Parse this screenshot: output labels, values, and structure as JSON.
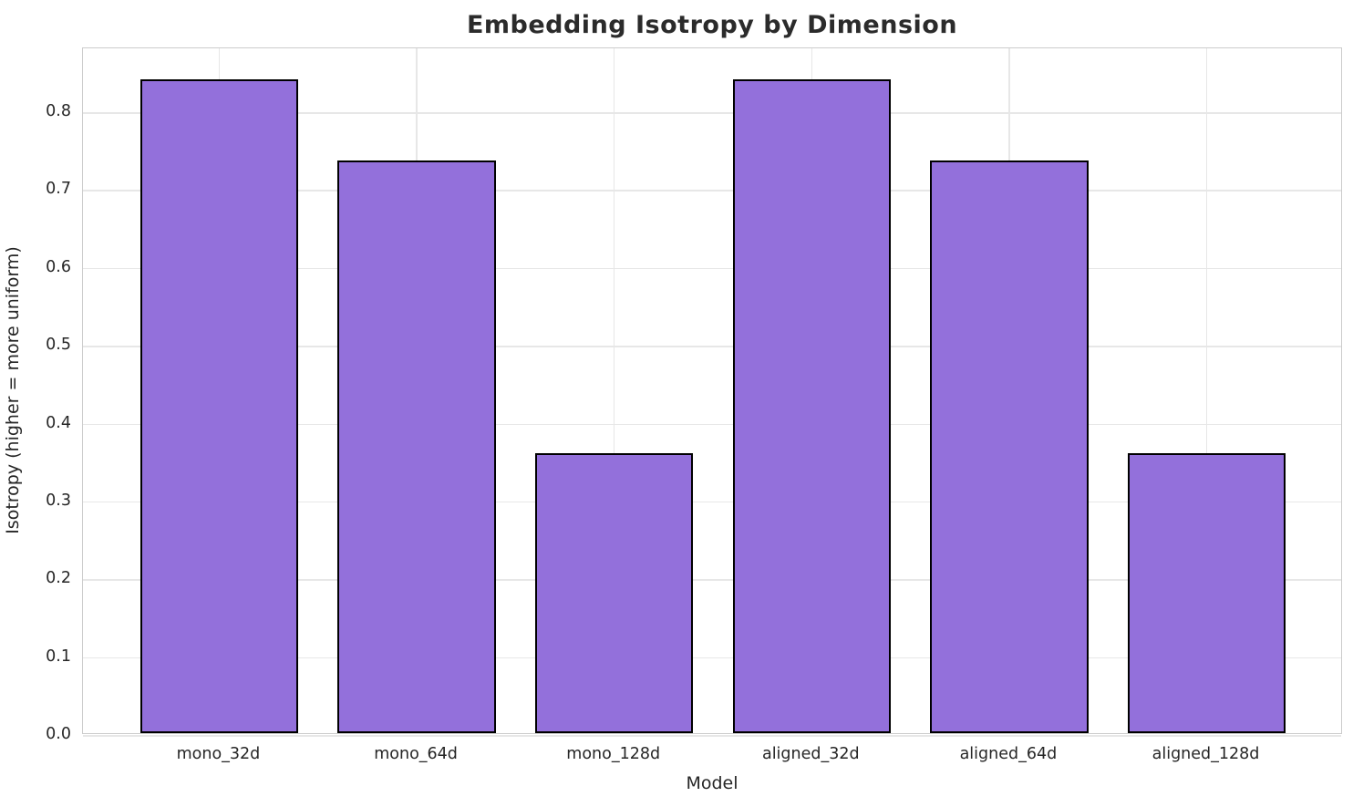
{
  "chart_data": {
    "type": "bar",
    "title": "Embedding Isotropy by Dimension",
    "xlabel": "Model",
    "ylabel": "Isotropy (higher = more uniform)",
    "categories": [
      "mono_32d",
      "mono_64d",
      "mono_128d",
      "aligned_32d",
      "aligned_64d",
      "aligned_128d"
    ],
    "values": [
      0.84,
      0.736,
      0.36,
      0.84,
      0.736,
      0.36
    ],
    "yticks": [
      0.0,
      0.1,
      0.2,
      0.3,
      0.4,
      0.5,
      0.6,
      0.7,
      0.8
    ],
    "ylim": [
      0,
      0.882
    ],
    "grid": true,
    "legend": "none",
    "bar_color": "#9370DB",
    "bar_edge_color": "#000000",
    "grid_color": "#e7e7e7",
    "text_color": "#262626",
    "background_color": "#ffffff"
  }
}
